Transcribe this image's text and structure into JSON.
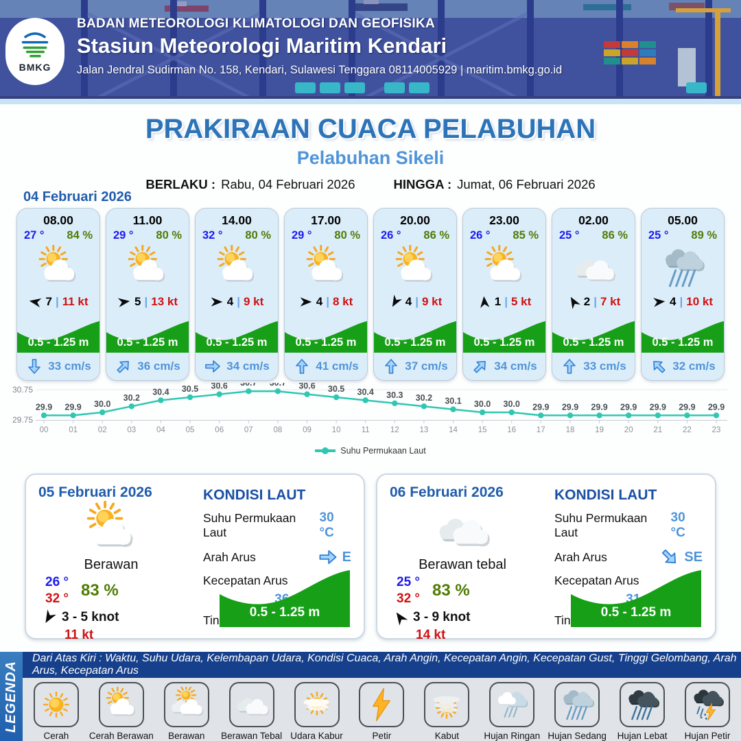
{
  "header": {
    "agency": "BADAN METEOROLOGI KLIMATOLOGI DAN GEOFISIKA",
    "station": "Stasiun Meteorologi Maritim Kendari",
    "address": "Jalan Jendral Sudirman No. 158, Kendari, Sulawesi Tenggara  08114005929 | maritim.bmkg.go.id",
    "logo_label": "BMKG"
  },
  "title": {
    "main": "PRAKIRAAN CUACA PELABUHAN",
    "port": "Pelabuhan Sikeli",
    "berlaku_label": "BERLAKU :",
    "berlaku_value": "Rabu, 04 Februari 2026",
    "hingga_label": "HINGGA :",
    "hingga_value": "Jumat, 06 Februari 2026"
  },
  "forecast": {
    "date": "04 Februari 2026",
    "cards": [
      {
        "time": "08.00",
        "temp": "27 °",
        "humidity": "84 %",
        "icon": "cerah-berawan",
        "wind": "7",
        "gust": "11 kt",
        "wind_deg": 190,
        "wave": "0.5 - 1.25 m",
        "current": "33 cm/s",
        "current_deg": 90
      },
      {
        "time": "11.00",
        "temp": "29 °",
        "humidity": "80 %",
        "icon": "cerah-berawan",
        "wind": "5",
        "gust": "13 kt",
        "wind_deg": -8,
        "wave": "0.5 - 1.25 m",
        "current": "36 cm/s",
        "current_deg": -45
      },
      {
        "time": "14.00",
        "temp": "32 °",
        "humidity": "80 %",
        "icon": "cerah-berawan",
        "wind": "4",
        "gust": "9 kt",
        "wind_deg": 0,
        "wave": "0.5 - 1.25 m",
        "current": "34 cm/s",
        "current_deg": 0
      },
      {
        "time": "17.00",
        "temp": "29 °",
        "humidity": "80 %",
        "icon": "cerah-berawan",
        "wind": "4",
        "gust": "8 kt",
        "wind_deg": 0,
        "wave": "0.5 - 1.25 m",
        "current": "41 cm/s",
        "current_deg": -90
      },
      {
        "time": "20.00",
        "temp": "26 °",
        "humidity": "86 %",
        "icon": "cerah-berawan",
        "wind": "4",
        "gust": "9 kt",
        "wind_deg": 120,
        "wave": "0.5 - 1.25 m",
        "current": "37 cm/s",
        "current_deg": -90
      },
      {
        "time": "23.00",
        "temp": "26 °",
        "humidity": "85 %",
        "icon": "cerah-berawan",
        "wind": "1",
        "gust": "5 kt",
        "wind_deg": -95,
        "wave": "0.5 - 1.25 m",
        "current": "34 cm/s",
        "current_deg": -45
      },
      {
        "time": "02.00",
        "temp": "25 °",
        "humidity": "86 %",
        "icon": "berawan-tebal",
        "wind": "2",
        "gust": "7 kt",
        "wind_deg": -120,
        "wave": "0.5 - 1.25 m",
        "current": "33 cm/s",
        "current_deg": -90
      },
      {
        "time": "05.00",
        "temp": "25 °",
        "humidity": "89 %",
        "icon": "hujan-sedang",
        "wind": "4",
        "gust": "10 kt",
        "wind_deg": -5,
        "wave": "0.5 - 1.25 m",
        "current": "32 cm/s",
        "current_deg": -135
      }
    ]
  },
  "chart_data": {
    "type": "line",
    "series_name": "Suhu Permukaan Laut",
    "x": [
      "00",
      "01",
      "02",
      "03",
      "04",
      "05",
      "06",
      "07",
      "08",
      "09",
      "10",
      "11",
      "12",
      "13",
      "14",
      "15",
      "16",
      "17",
      "18",
      "19",
      "20",
      "21",
      "22",
      "23"
    ],
    "values": [
      29.9,
      29.9,
      30.0,
      30.2,
      30.4,
      30.5,
      30.6,
      30.7,
      30.7,
      30.6,
      30.5,
      30.4,
      30.3,
      30.2,
      30.1,
      30.0,
      30.0,
      29.9,
      29.9,
      29.9,
      29.9,
      29.9,
      29.9,
      29.9
    ],
    "ylim": [
      29.75,
      30.75
    ],
    "yticks": [
      "29.75",
      "30.75"
    ],
    "line_color": "#2fc7b2",
    "grid": true,
    "legend_position": "bottom"
  },
  "days": [
    {
      "date": "05 Februari 2026",
      "condition": "Berawan",
      "icon": "cerah-berawan",
      "temp_min": "26 °",
      "temp_max": "32 °",
      "humidity": "83 %",
      "wind_range": "3 - 5 knot",
      "gust": "11 kt",
      "wind_deg": 120,
      "sea": {
        "heading": "KONDISI LAUT",
        "sst_label": "Suhu Permukaan Laut",
        "sst": "30 °C",
        "arah_label": "Arah Arus",
        "arah": "E",
        "arah_deg": 0,
        "kec_label": "Kecepatan Arus",
        "kec": "36 - 47 cm/s",
        "wave_label": "Tinggi Gelombang",
        "wave": "0.5 - 1.25 m"
      }
    },
    {
      "date": "06 Februari 2026",
      "condition": "Berawan tebal",
      "icon": "berawan-tebal",
      "temp_min": "25 °",
      "temp_max": "32 °",
      "humidity": "83 %",
      "wind_range": "3 - 9 knot",
      "gust": "14 kt",
      "wind_deg": -125,
      "sea": {
        "heading": "KONDISI LAUT",
        "sst_label": "Suhu Permukaan Laut",
        "sst": "30 °C",
        "arah_label": "Arah Arus",
        "arah": "SE",
        "arah_deg": 45,
        "kec_label": "Kecepatan Arus",
        "kec": "31 - 43 cm/s",
        "wave_label": "Tinggi Gelombang",
        "wave": "0.5 - 1.25 m"
      }
    }
  ],
  "legend": {
    "title": "LEGENDA",
    "note": "Dari Atas Kiri : Waktu, Suhu Udara, Kelembapan Udara, Kondisi Cuaca, Arah Angin, Kecepatan Angin, Kecepatan Gust, Tinggi Gelombang, Arah Arus, Kecepatan Arus",
    "items": [
      {
        "label": "Cerah",
        "icon": "cerah"
      },
      {
        "label": "Cerah Berawan",
        "icon": "cerah-berawan"
      },
      {
        "label": "Berawan",
        "icon": "berawan"
      },
      {
        "label": "Berawan Tebal",
        "icon": "berawan-tebal"
      },
      {
        "label": "Udara Kabur",
        "icon": "udara-kabur"
      },
      {
        "label": "Petir",
        "icon": "petir"
      },
      {
        "label": "Kabut",
        "icon": "kabut"
      },
      {
        "label": "Hujan Ringan",
        "icon": "hujan-ringan"
      },
      {
        "label": "Hujan Sedang",
        "icon": "hujan-sedang"
      },
      {
        "label": "Hujan Lebat",
        "icon": "hujan-lebat"
      },
      {
        "label": "Hujan Petir",
        "icon": "hujan-petir"
      }
    ]
  },
  "colors": {
    "title_blue": "#2c73b7",
    "subtitle_blue": "#4f94d9",
    "date_blue": "#1f5cad",
    "temp_blue": "#1b1bef",
    "temp_red": "#cf1111",
    "humidity_green": "#4e7c04",
    "wave_green": "#17a017",
    "current_blue": "#4f94d9",
    "chart_teal": "#2fc7b2",
    "legend_band_blue": "#2e75b6",
    "note_strip_blue": "#16408c"
  }
}
